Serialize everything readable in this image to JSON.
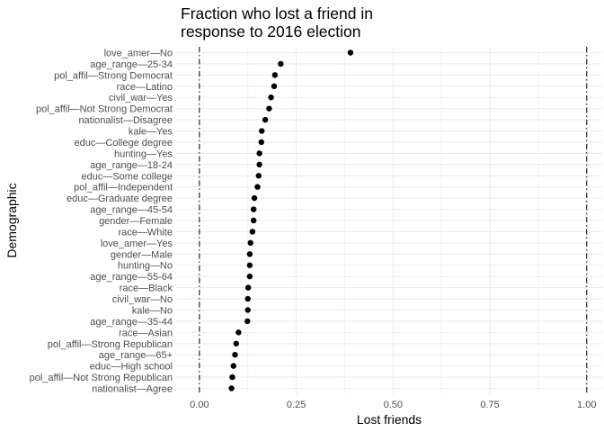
{
  "chart_data": {
    "type": "scatter",
    "title_lines": [
      "Fraction who lost a friend in",
      "response to 2016 election"
    ],
    "xlabel": "Lost friends",
    "ylabel": "Demographic",
    "xlim": [
      -0.06,
      1.04
    ],
    "x_ticks": [
      0.0,
      0.25,
      0.5,
      0.75,
      1.0
    ],
    "x_tick_labels": [
      "0.00",
      "0.25",
      "0.50",
      "0.75",
      "1.00"
    ],
    "reference_lines": [
      0.0,
      1.0
    ],
    "grid": true,
    "categories": [
      "love_amer—No",
      "age_range—25-34",
      "pol_affil—Strong Democrat",
      "race—Latino",
      "civil_war—Yes",
      "pol_affil—Not Strong Democrat",
      "nationalist—Disagree",
      "kale—Yes",
      "educ—College degree",
      "hunting—Yes",
      "age_range—18-24",
      "educ—Some college",
      "pol_affil—Independent",
      "educ—Graduate degree",
      "age_range—45-54",
      "gender—Female",
      "race—White",
      "love_amer—Yes",
      "gender—Male",
      "hunting—No",
      "age_range—55-64",
      "race—Black",
      "civil_war—No",
      "kale—No",
      "age_range—35-44",
      "race—Asian",
      "pol_affil—Strong Republican",
      "age_range—65+",
      "educ—High school",
      "pol_affil—Not Strong Republican",
      "nationalist—Agree"
    ],
    "values": [
      0.39,
      0.21,
      0.195,
      0.193,
      0.185,
      0.18,
      0.17,
      0.161,
      0.16,
      0.155,
      0.155,
      0.153,
      0.15,
      0.142,
      0.14,
      0.14,
      0.137,
      0.132,
      0.13,
      0.13,
      0.13,
      0.126,
      0.125,
      0.125,
      0.124,
      0.101,
      0.095,
      0.092,
      0.088,
      0.085,
      0.083
    ]
  }
}
